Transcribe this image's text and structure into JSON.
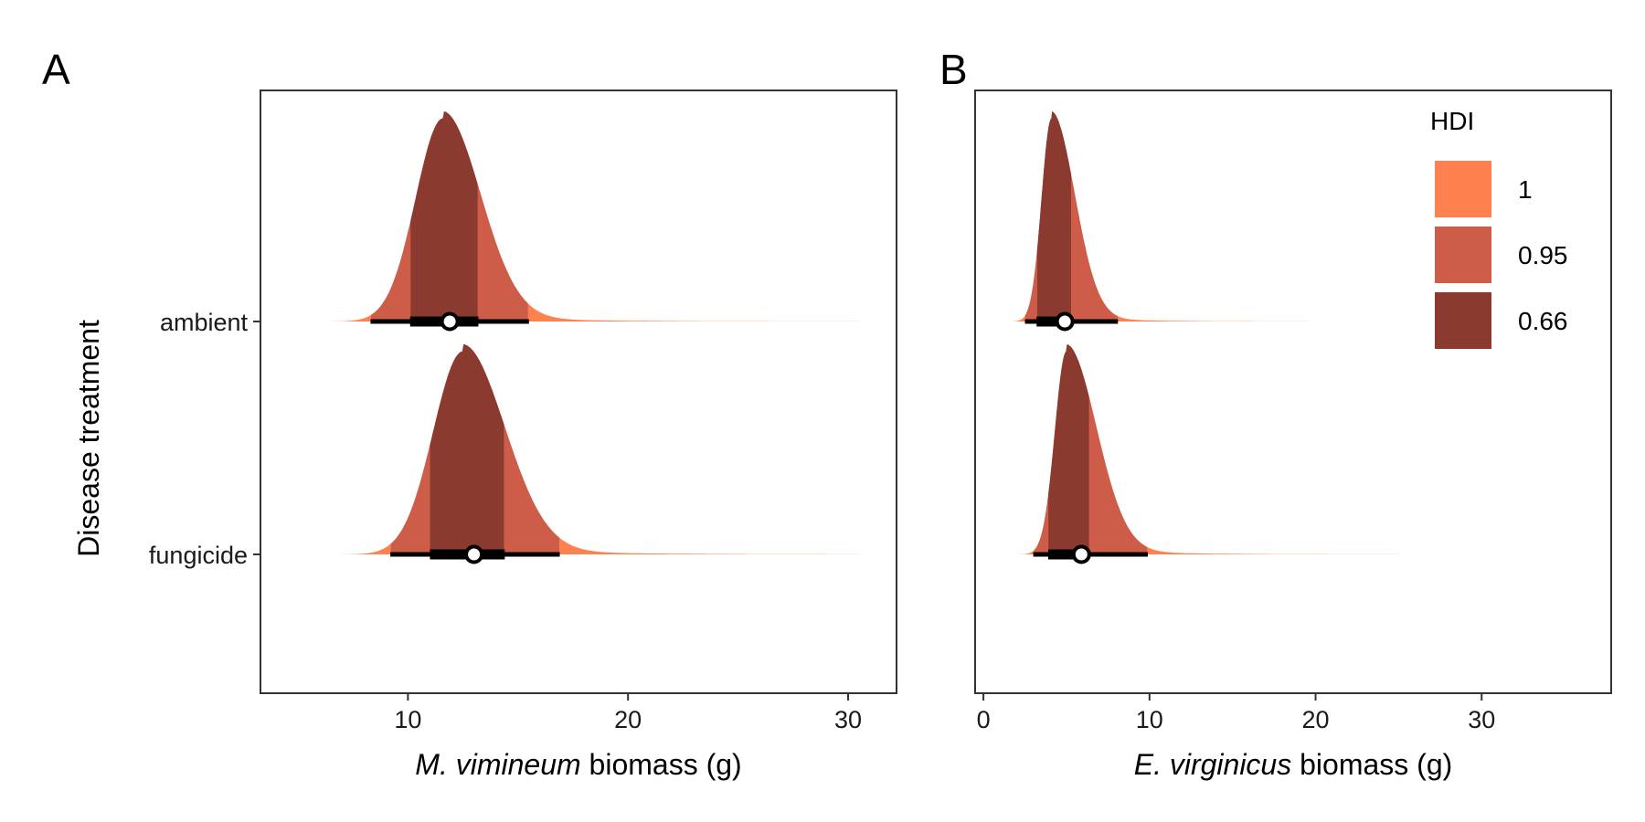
{
  "colors": {
    "hdi_1": "#ff8150",
    "hdi_095": "#cd5c48",
    "hdi_066": "#8b3a30",
    "interval": "#000000",
    "point_fill": "#ffffff",
    "panel_border": "#333333"
  },
  "legend": {
    "title": "HDI",
    "entries": [
      {
        "label": "1",
        "color": "#ff8150"
      },
      {
        "label": "0.95",
        "color": "#cd5c48"
      },
      {
        "label": "0.66",
        "color": "#8b3a30"
      }
    ]
  },
  "shared": {
    "ylabel": "Disease treatment",
    "categories": [
      "ambient",
      "fungicide"
    ]
  },
  "chart_data": [
    {
      "type": "halfeye",
      "panel_label": "A",
      "xlabel_italic": "M. vimineum",
      "xlabel_rest": " biomass (g)",
      "xlim": [
        3.3,
        32.2
      ],
      "xticks": [
        10,
        20,
        30
      ],
      "categories": [
        "ambient",
        "fungicide"
      ],
      "series": [
        {
          "category": "ambient",
          "mode": 11.6,
          "sd_left": 1.25,
          "sd_right": 1.7,
          "tail_min": 4.3,
          "tail_max": 31.5,
          "point": 11.9,
          "hdi_066": [
            10.1,
            13.2
          ],
          "hdi_095": [
            8.3,
            15.5
          ],
          "hdi_1": [
            4.3,
            31.5
          ]
        },
        {
          "category": "fungicide",
          "mode": 12.5,
          "sd_left": 1.35,
          "sd_right": 1.9,
          "tail_min": 4.3,
          "tail_max": 30.5,
          "point": 13.0,
          "hdi_066": [
            11.0,
            14.4
          ],
          "hdi_095": [
            9.2,
            16.9
          ],
          "hdi_1": [
            4.3,
            30.5
          ]
        }
      ]
    },
    {
      "type": "halfeye",
      "panel_label": "B",
      "xlabel_italic": "E. virginicus",
      "xlabel_rest": " biomass (g)",
      "xlim": [
        -0.5,
        37.8
      ],
      "xticks": [
        0,
        10,
        20,
        30
      ],
      "categories": [
        "ambient",
        "fungicide"
      ],
      "series": [
        {
          "category": "ambient",
          "mode": 4.1,
          "sd_left": 0.6,
          "sd_right": 1.4,
          "tail_min": 1.8,
          "tail_max": 23.0,
          "point": 4.9,
          "hdi_066": [
            3.2,
            5.3
          ],
          "hdi_095": [
            2.5,
            8.1
          ],
          "hdi_1": [
            1.8,
            23.0
          ]
        },
        {
          "category": "fungicide",
          "mode": 5.0,
          "sd_left": 0.7,
          "sd_right": 1.8,
          "tail_min": 2.0,
          "tail_max": 35.0,
          "point": 5.9,
          "hdi_066": [
            3.9,
            6.4
          ],
          "hdi_095": [
            3.0,
            9.9
          ],
          "hdi_1": [
            2.0,
            35.0
          ]
        }
      ]
    }
  ]
}
